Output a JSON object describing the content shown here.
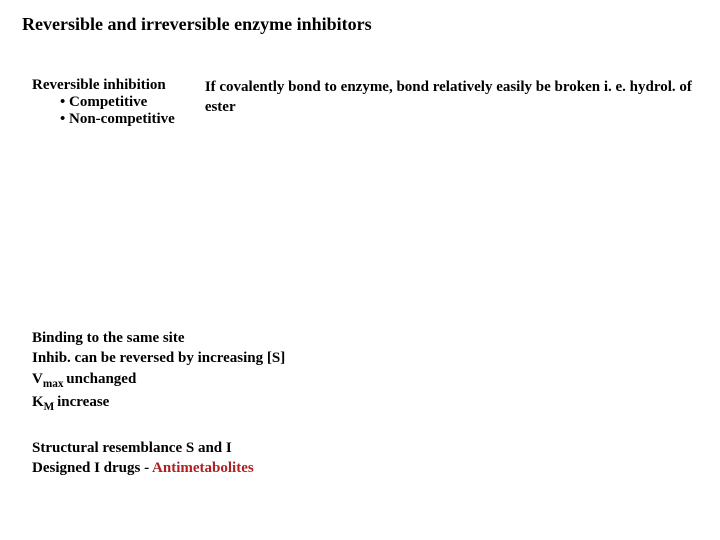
{
  "title": "Reversible and irreversible enzyme  inhibitors",
  "leftCol": {
    "heading": "Reversible inhibition",
    "bullet1": "• Competitive",
    "bullet2": "• Non-competitive"
  },
  "rightCol": {
    "line1": "If covalently bond to enzyme, bond relatively easily be broken",
    "line2": "i. e. hydrol. of ester"
  },
  "bottom": {
    "block1": {
      "l1": "Binding to the same site",
      "l2": "Inhib. can be reversed by increasing [S]",
      "l3a": "V",
      "l3sub": "max ",
      "l3b": "unchanged",
      "l4a": "K",
      "l4sub": "M ",
      "l4b": "increase"
    },
    "block2": {
      "l1": "Structural resemblance S and I",
      "l2a": "Designed I drugs  - ",
      "l2b": "Antimetabolites"
    }
  },
  "colors": {
    "text": "#000000",
    "accent": "#b02020",
    "background": "#ffffff"
  }
}
